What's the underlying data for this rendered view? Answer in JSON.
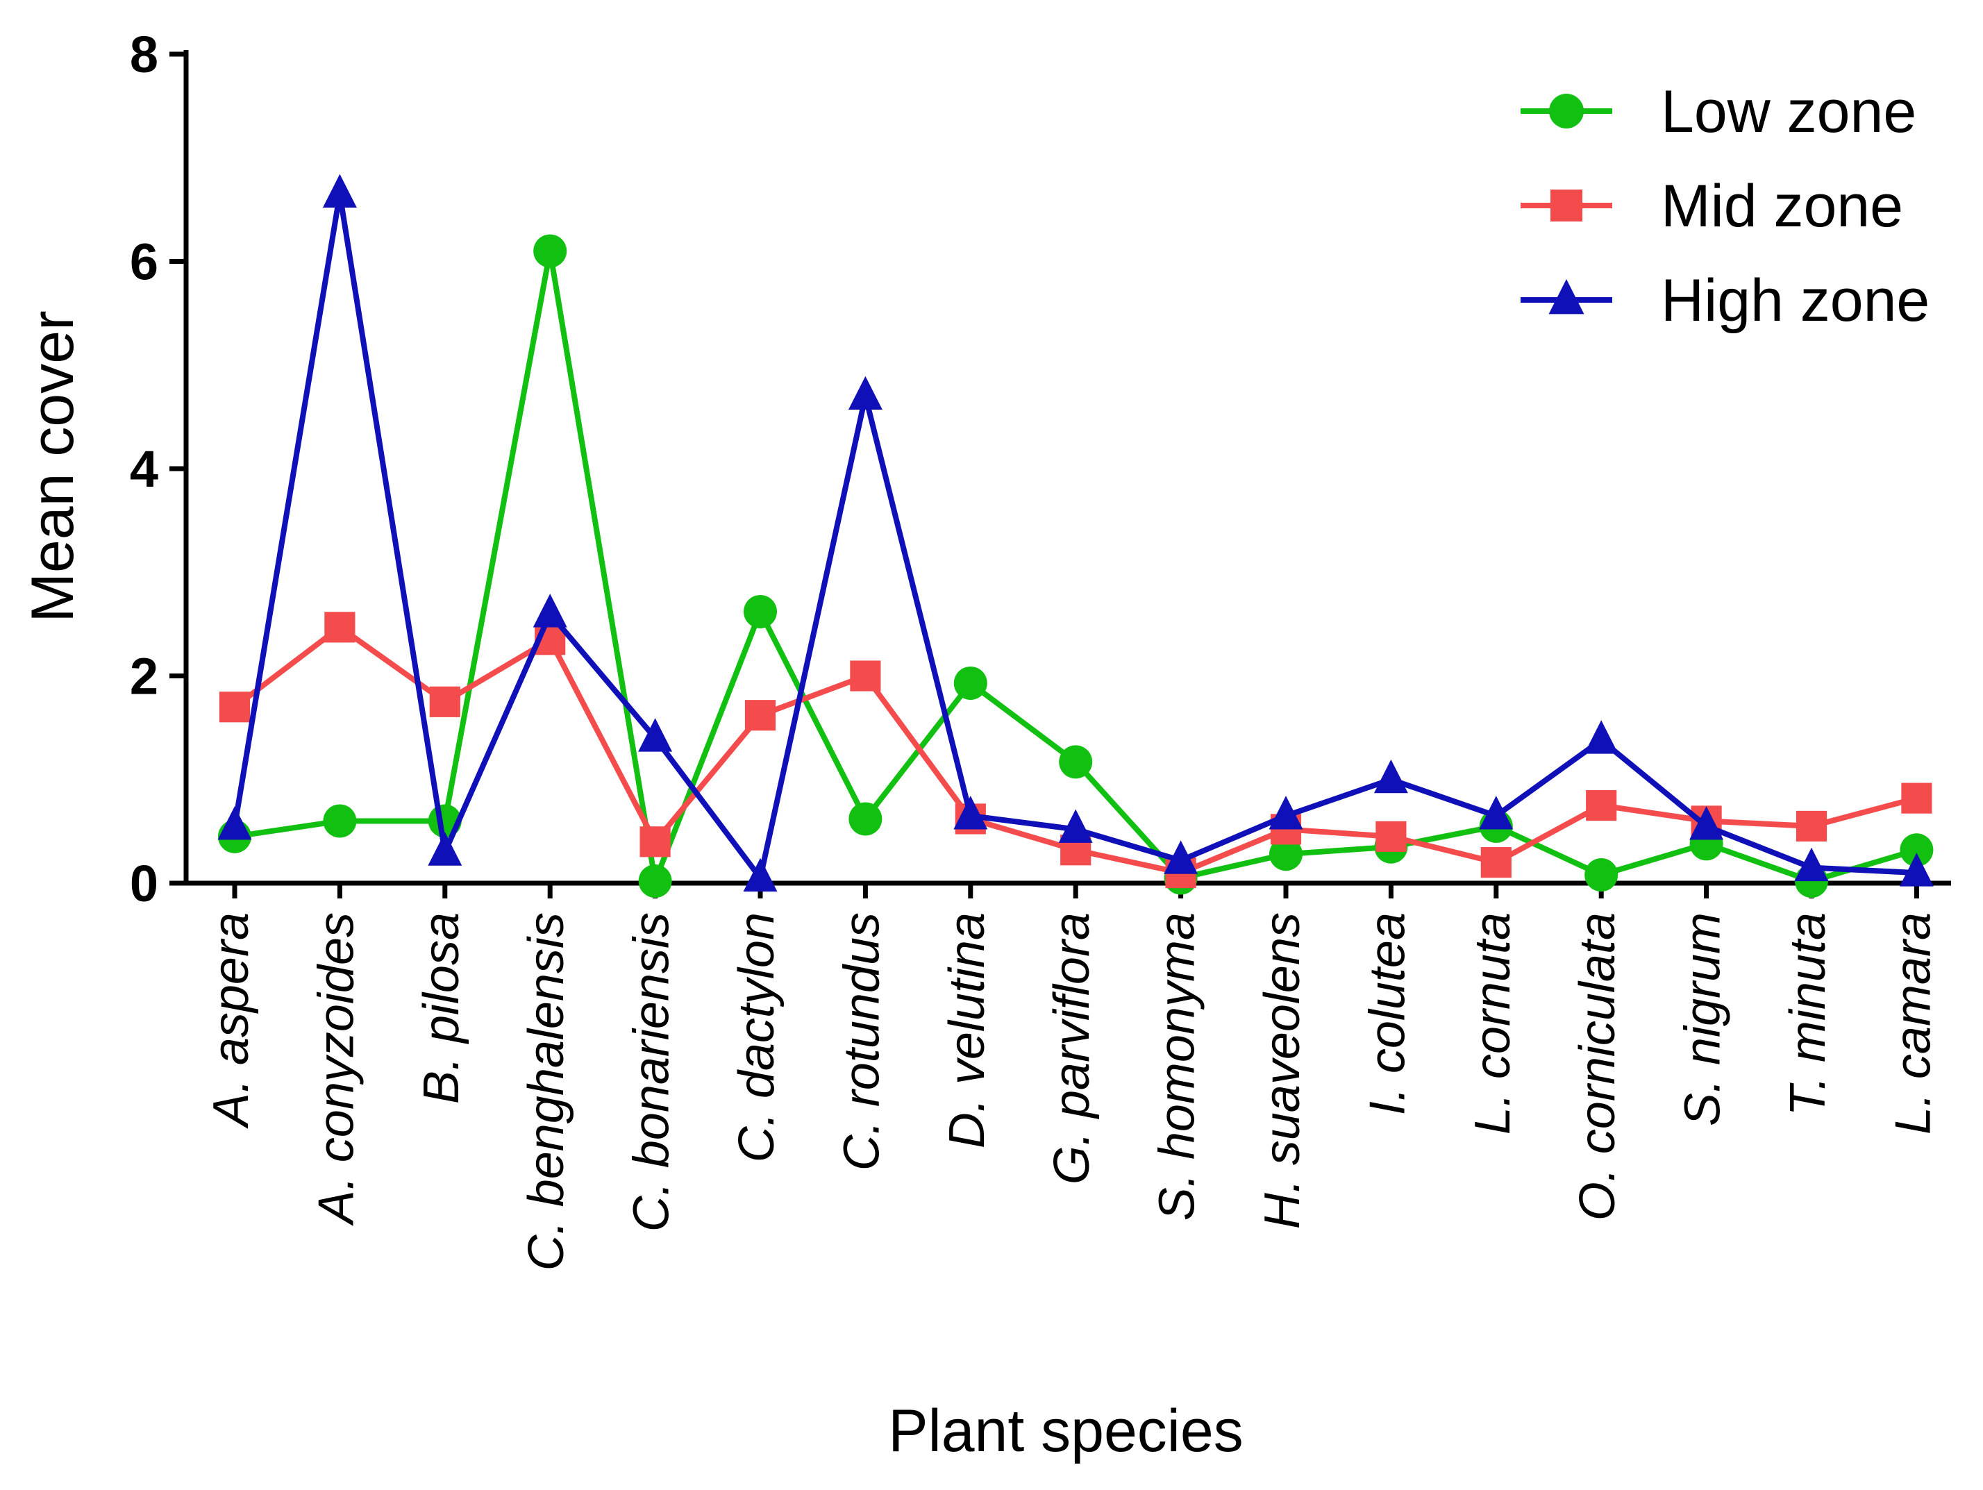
{
  "chart_data": {
    "type": "line",
    "title": "",
    "xlabel": "Plant species",
    "ylabel": "Mean cover",
    "ylim": [
      0,
      8
    ],
    "yticks": [
      "0",
      "2",
      "4",
      "6",
      "8"
    ],
    "grid": false,
    "legend_position": "top-right",
    "categories": [
      "A. aspera",
      "A. conyzoides",
      "B. pilosa",
      "C. benghalensis",
      "C. bonariensis",
      "C. dactylon",
      "C. rotundus",
      "D. velutina",
      "G. parviflora",
      "S. homonyma",
      "H. suaveolens",
      "I. colutea",
      "L. cornuta",
      "O. corniculata",
      "S. nigrum",
      "T. minuta",
      "L. camara"
    ],
    "series": [
      {
        "name": "Low zone",
        "color": "#11c011",
        "marker": "circle",
        "values": [
          0.45,
          0.6,
          0.6,
          6.1,
          0.02,
          2.62,
          0.62,
          1.93,
          1.17,
          0.05,
          0.28,
          0.35,
          0.55,
          0.08,
          0.38,
          0.02,
          0.32
        ]
      },
      {
        "name": "Mid zone",
        "color": "#f44c4c",
        "marker": "square",
        "values": [
          1.7,
          2.47,
          1.75,
          2.35,
          0.4,
          1.62,
          2.0,
          0.62,
          0.32,
          0.1,
          0.52,
          0.45,
          0.2,
          0.75,
          0.6,
          0.55,
          0.82
        ]
      },
      {
        "name": "High zone",
        "color": "#1010b8",
        "marker": "triangle",
        "values": [
          0.55,
          6.65,
          0.3,
          2.6,
          1.4,
          0.05,
          4.7,
          0.65,
          0.52,
          0.22,
          0.65,
          1.0,
          0.65,
          1.38,
          0.55,
          0.15,
          0.1
        ]
      }
    ]
  }
}
